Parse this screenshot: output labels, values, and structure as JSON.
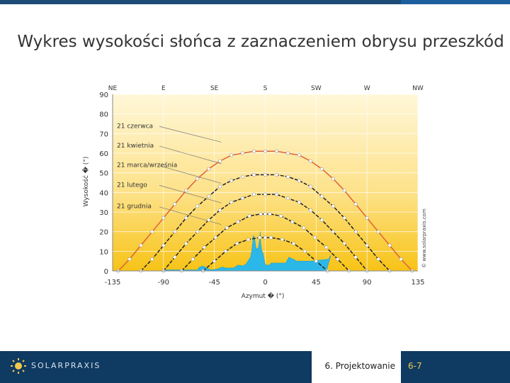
{
  "slide": {
    "title": "Wykres wysokości słońca z zaznaczeniem obrysu przeszkód",
    "section": "6. Projektowanie",
    "page": "6-7",
    "brand": "SOLARPRAXIS",
    "colors": {
      "topbar": "#1e4a78",
      "footer": "#0f3a62",
      "page_accent": "#f2c94c"
    }
  },
  "chart_data": {
    "type": "line",
    "title": "",
    "xlabel": "Azymut � (°)",
    "ylabel": "Wysokość � (°)",
    "xlim": [
      -135,
      135
    ],
    "ylim": [
      0,
      90
    ],
    "x_ticks": [
      -135,
      -90,
      -45,
      0,
      45,
      90,
      135
    ],
    "y_ticks": [
      0,
      10,
      20,
      30,
      40,
      50,
      60,
      70,
      80,
      90
    ],
    "compass": [
      {
        "label": "NE",
        "x": -135
      },
      {
        "label": "E",
        "x": -90
      },
      {
        "label": "SE",
        "x": -45
      },
      {
        "label": "S",
        "x": 0
      },
      {
        "label": "SW",
        "x": 45
      },
      {
        "label": "W",
        "x": 90
      },
      {
        "label": "NW",
        "x": 135
      }
    ],
    "watermark": "© www.solarpraxis.com",
    "series": [
      {
        "name": "21 czerwca",
        "color": "#e0603a",
        "dashed": false,
        "x": [
          -130,
          -120,
          -110,
          -100,
          -90,
          -80,
          -70,
          -60,
          -50,
          -40,
          -30,
          -20,
          -10,
          0,
          10,
          20,
          30,
          40,
          50,
          60,
          70,
          80,
          90,
          100,
          110,
          120,
          130
        ],
        "y": [
          0,
          6,
          13,
          20,
          27,
          34,
          41,
          47,
          52,
          56,
          59,
          60,
          61,
          61,
          61,
          60,
          59,
          56,
          52,
          47,
          41,
          34,
          27,
          20,
          13,
          6,
          0
        ],
        "label_anchor": [
          -64,
          70
        ]
      },
      {
        "name": "21 kwietnia",
        "color": "#222222",
        "dashed": true,
        "x": [
          -110,
          -100,
          -90,
          -80,
          -70,
          -60,
          -50,
          -40,
          -30,
          -20,
          -10,
          0,
          10,
          20,
          30,
          40,
          50,
          60,
          70,
          80,
          90,
          100,
          110
        ],
        "y": [
          0,
          6,
          13,
          20,
          27,
          33,
          38,
          43,
          46,
          48,
          49,
          49,
          49,
          48,
          46,
          43,
          38,
          33,
          27,
          20,
          13,
          6,
          0
        ],
        "label_anchor": [
          -64,
          59
        ]
      },
      {
        "name": "21 marca/września",
        "color": "#222222",
        "dashed": true,
        "x": [
          -90,
          -80,
          -70,
          -60,
          -50,
          -40,
          -30,
          -20,
          -10,
          0,
          10,
          20,
          30,
          40,
          50,
          60,
          70,
          80,
          90
        ],
        "y": [
          0,
          7,
          14,
          20,
          26,
          31,
          35,
          37,
          39,
          39,
          39,
          37,
          35,
          31,
          26,
          20,
          14,
          7,
          0
        ],
        "label_anchor": [
          -64,
          49
        ]
      },
      {
        "name": "21 lutego",
        "color": "#222222",
        "dashed": true,
        "x": [
          -74,
          -64,
          -54,
          -44,
          -34,
          -24,
          -14,
          -4,
          0,
          4,
          14,
          24,
          34,
          44,
          54,
          64,
          74
        ],
        "y": [
          0,
          6,
          12,
          17,
          22,
          25,
          28,
          29,
          29,
          29,
          28,
          25,
          22,
          17,
          12,
          6,
          0
        ],
        "label_anchor": [
          -64,
          39
        ]
      },
      {
        "name": "21 grudnia",
        "color": "#222222",
        "dashed": true,
        "x": [
          -55,
          -45,
          -35,
          -25,
          -15,
          -5,
          0,
          5,
          15,
          25,
          35,
          45,
          55
        ],
        "y": [
          0,
          5,
          10,
          14,
          16,
          17,
          17,
          17,
          16,
          14,
          10,
          5,
          0
        ],
        "label_anchor": [
          -64,
          28
        ]
      }
    ],
    "labels": [
      {
        "text": "21 czerwca",
        "series": 0,
        "x": -135,
        "y": 74
      },
      {
        "text": "21 kwietnia",
        "series": 1,
        "x": -135,
        "y": 64
      },
      {
        "text": "21 marca/września",
        "series": 2,
        "x": -135,
        "y": 54
      },
      {
        "text": "21 lutego",
        "series": 3,
        "x": -135,
        "y": 44
      },
      {
        "text": "21 grudnia",
        "series": 4,
        "x": -135,
        "y": 33
      }
    ],
    "obstacle": {
      "color": "#2bb8e8",
      "outline": [
        [
          -90,
          0
        ],
        [
          -90,
          0.5
        ],
        [
          -60,
          0.5
        ],
        [
          -58,
          2
        ],
        [
          -55,
          2.5
        ],
        [
          -52,
          1.5
        ],
        [
          -48,
          0.5
        ],
        [
          -42,
          1
        ],
        [
          -38,
          2
        ],
        [
          -35,
          1.5
        ],
        [
          -28,
          1.5
        ],
        [
          -24,
          3
        ],
        [
          -20,
          2.5
        ],
        [
          -17,
          3.5
        ],
        [
          -13,
          7
        ],
        [
          -12,
          10
        ],
        [
          -11,
          15
        ],
        [
          -10.5,
          18
        ],
        [
          -9.5,
          17
        ],
        [
          -8.5,
          13
        ],
        [
          -8,
          11
        ],
        [
          -6,
          12
        ],
        [
          -5,
          16
        ],
        [
          -4.5,
          20
        ],
        [
          -4,
          14
        ],
        [
          -3,
          10
        ],
        [
          -2,
          9
        ],
        [
          0,
          3
        ],
        [
          4,
          3
        ],
        [
          5,
          4
        ],
        [
          18,
          4
        ],
        [
          21,
          7
        ],
        [
          28,
          5
        ],
        [
          40,
          5
        ],
        [
          56,
          6
        ],
        [
          58,
          8
        ],
        [
          54,
          0
        ]
      ]
    }
  }
}
